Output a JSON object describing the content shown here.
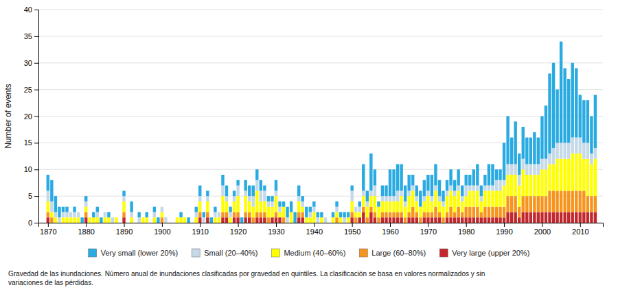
{
  "chart_data": {
    "type": "bar",
    "stacked": true,
    "ylabel": "Number of events",
    "footnote": "Gravedad de las inundaciones. Número anual de inundaciones clasificadas por gravedad en quintiles. La clasificación se basa en valores normalizados y sin\nvariaciones de las pérdidas.",
    "x": [
      1870,
      1871,
      1872,
      1873,
      1874,
      1875,
      1876,
      1877,
      1878,
      1879,
      1880,
      1881,
      1882,
      1883,
      1884,
      1885,
      1886,
      1887,
      1888,
      1889,
      1890,
      1891,
      1892,
      1893,
      1894,
      1895,
      1896,
      1897,
      1898,
      1899,
      1900,
      1901,
      1902,
      1903,
      1904,
      1905,
      1906,
      1907,
      1908,
      1909,
      1910,
      1911,
      1912,
      1913,
      1914,
      1915,
      1916,
      1917,
      1918,
      1919,
      1920,
      1921,
      1922,
      1923,
      1924,
      1925,
      1926,
      1927,
      1928,
      1929,
      1930,
      1931,
      1932,
      1933,
      1934,
      1935,
      1936,
      1937,
      1938,
      1939,
      1940,
      1941,
      1942,
      1943,
      1944,
      1945,
      1946,
      1947,
      1948,
      1949,
      1950,
      1951,
      1952,
      1953,
      1954,
      1955,
      1956,
      1957,
      1958,
      1959,
      1960,
      1961,
      1962,
      1963,
      1964,
      1965,
      1966,
      1967,
      1968,
      1969,
      1970,
      1971,
      1972,
      1973,
      1974,
      1975,
      1976,
      1977,
      1978,
      1979,
      1980,
      1981,
      1982,
      1983,
      1984,
      1985,
      1986,
      1987,
      1988,
      1989,
      1990,
      1991,
      1992,
      1993,
      1994,
      1995,
      1996,
      1997,
      1998,
      1999,
      2000,
      2001,
      2002,
      2003,
      2004,
      2005,
      2006,
      2007,
      2008,
      2009,
      2010,
      2011,
      2012,
      2013,
      2014
    ],
    "xlim": [
      1867.5,
      2016
    ],
    "xticks": [
      1870,
      1880,
      1890,
      1900,
      1910,
      1920,
      1930,
      1940,
      1950,
      1960,
      1970,
      1980,
      1990,
      2000,
      2010
    ],
    "ylim": [
      0,
      40
    ],
    "yticks": [
      0,
      5,
      10,
      15,
      20,
      25,
      30,
      35,
      40
    ],
    "grid": true,
    "legend": "bottom",
    "series": [
      {
        "name": "Very large (upper 20%)",
        "color": "#C1272D",
        "values": [
          1,
          0,
          0,
          0,
          0,
          0,
          0,
          0,
          0,
          0,
          1,
          0,
          0,
          0,
          0,
          0,
          0,
          0,
          0,
          0,
          1,
          0,
          0,
          0,
          0,
          0,
          0,
          0,
          0,
          0,
          0,
          0,
          0,
          0,
          0,
          0,
          0,
          0,
          0,
          0,
          1,
          0,
          1,
          0,
          0,
          0,
          1,
          1,
          0,
          1,
          1,
          0,
          1,
          1,
          0,
          1,
          1,
          1,
          0,
          1,
          1,
          1,
          0,
          0,
          0,
          0,
          1,
          1,
          0,
          0,
          0,
          0,
          0,
          0,
          0,
          0,
          0,
          0,
          0,
          0,
          1,
          0,
          1,
          2,
          0,
          2,
          1,
          0,
          1,
          1,
          1,
          1,
          1,
          1,
          0,
          1,
          1,
          1,
          0,
          1,
          1,
          1,
          1,
          1,
          0,
          1,
          1,
          1,
          1,
          1,
          1,
          1,
          1,
          1,
          1,
          1,
          1,
          1,
          1,
          1,
          1,
          2,
          2,
          2,
          1,
          2,
          2,
          2,
          2,
          2,
          2,
          2,
          2,
          2,
          2,
          2,
          2,
          2,
          2,
          2,
          2,
          2,
          2,
          2,
          2
        ]
      },
      {
        "name": "Large (60–80%)",
        "color": "#F7941D",
        "values": [
          1,
          1,
          0,
          0,
          0,
          0,
          0,
          0,
          0,
          0,
          1,
          0,
          0,
          0,
          0,
          0,
          0,
          0,
          0,
          0,
          1,
          0,
          0,
          0,
          0,
          0,
          0,
          0,
          0,
          0,
          1,
          0,
          0,
          0,
          0,
          0,
          0,
          0,
          0,
          0,
          1,
          0,
          1,
          0,
          0,
          0,
          1,
          1,
          0,
          1,
          1,
          0,
          1,
          1,
          1,
          1,
          1,
          1,
          1,
          0,
          1,
          0,
          1,
          0,
          0,
          0,
          1,
          1,
          0,
          0,
          0,
          0,
          0,
          0,
          0,
          0,
          1,
          0,
          0,
          0,
          1,
          1,
          0,
          1,
          1,
          1,
          1,
          1,
          1,
          1,
          1,
          1,
          1,
          1,
          1,
          1,
          2,
          1,
          1,
          1,
          1,
          1,
          2,
          1,
          1,
          1,
          2,
          1,
          2,
          1,
          2,
          2,
          2,
          2,
          1,
          2,
          2,
          2,
          2,
          2,
          2,
          3,
          3,
          3,
          2,
          3,
          3,
          3,
          3,
          3,
          3,
          3,
          4,
          4,
          4,
          4,
          4,
          4,
          4,
          4,
          4,
          4,
          3,
          3,
          3
        ]
      },
      {
        "name": "Medium (40–60%)",
        "color": "#FFFF00",
        "values": [
          2,
          1,
          1,
          0,
          1,
          1,
          1,
          1,
          1,
          0,
          1,
          1,
          1,
          1,
          0,
          1,
          1,
          0,
          1,
          0,
          2,
          0,
          1,
          0,
          0,
          1,
          1,
          0,
          1,
          0,
          1,
          0,
          0,
          0,
          1,
          1,
          1,
          0,
          0,
          1,
          2,
          0,
          2,
          0,
          1,
          1,
          3,
          2,
          1,
          2,
          3,
          0,
          3,
          2,
          2,
          4,
          2,
          2,
          2,
          2,
          3,
          1,
          2,
          0,
          2,
          0,
          2,
          1,
          1,
          1,
          2,
          0,
          1,
          0,
          0,
          1,
          1,
          1,
          0,
          1,
          2,
          1,
          1,
          2,
          2,
          2,
          3,
          2,
          2,
          2,
          2,
          2,
          2,
          3,
          2,
          3,
          3,
          2,
          2,
          2,
          3,
          2,
          3,
          2,
          2,
          3,
          3,
          3,
          3,
          2,
          2,
          3,
          3,
          3,
          2,
          3,
          3,
          3,
          3,
          3,
          4,
          4,
          4,
          4,
          4,
          5,
          4,
          4,
          4,
          4,
          5,
          5,
          5,
          5,
          6,
          6,
          6,
          6,
          7,
          7,
          7,
          6,
          7,
          6,
          7
        ]
      },
      {
        "name": "Small (20–40%)",
        "color": "#C5D9E8",
        "values": [
          2,
          2,
          1,
          1,
          1,
          1,
          1,
          1,
          1,
          0,
          1,
          0,
          0,
          1,
          0,
          1,
          0,
          1,
          0,
          0,
          1,
          0,
          1,
          0,
          1,
          0,
          0,
          0,
          1,
          0,
          1,
          1,
          0,
          0,
          0,
          0,
          0,
          0,
          0,
          1,
          1,
          1,
          1,
          0,
          1,
          1,
          2,
          1,
          1,
          1,
          2,
          0,
          1,
          1,
          2,
          2,
          2,
          2,
          1,
          1,
          1,
          1,
          0,
          1,
          0,
          0,
          1,
          1,
          0,
          1,
          1,
          1,
          0,
          1,
          0,
          0,
          1,
          0,
          1,
          0,
          2,
          1,
          1,
          1,
          1,
          1,
          2,
          0,
          1,
          1,
          1,
          1,
          2,
          1,
          1,
          1,
          1,
          1,
          0,
          1,
          1,
          1,
          1,
          1,
          1,
          1,
          1,
          1,
          1,
          1,
          2,
          1,
          1,
          1,
          1,
          1,
          1,
          1,
          2,
          2,
          1,
          2,
          2,
          2,
          2,
          2,
          2,
          2,
          2,
          2,
          2,
          2,
          2,
          3,
          3,
          3,
          3,
          3,
          3,
          3,
          3,
          3,
          3,
          2,
          2
        ]
      },
      {
        "name": "Very small (lower 20%)",
        "color": "#29ABE2",
        "values": [
          3,
          4,
          3,
          2,
          1,
          1,
          0,
          1,
          0,
          1,
          1,
          0,
          1,
          1,
          1,
          0,
          1,
          0,
          0,
          0,
          1,
          0,
          2,
          0,
          1,
          0,
          1,
          0,
          1,
          1,
          0,
          0,
          0,
          0,
          0,
          1,
          0,
          1,
          0,
          1,
          2,
          1,
          1,
          1,
          1,
          0,
          2,
          2,
          1,
          1,
          1,
          1,
          2,
          2,
          2,
          2,
          2,
          1,
          1,
          1,
          2,
          1,
          1,
          2,
          2,
          2,
          2,
          1,
          2,
          1,
          1,
          1,
          1,
          0,
          0,
          1,
          1,
          1,
          1,
          1,
          1,
          0,
          1,
          5,
          2,
          7,
          3,
          1,
          2,
          2,
          5,
          5,
          5,
          5,
          3,
          3,
          2,
          2,
          3,
          3,
          3,
          4,
          4,
          3,
          2,
          2,
          3,
          2,
          3,
          2,
          2,
          2,
          3,
          4,
          2,
          2,
          4,
          4,
          2,
          2,
          7,
          9,
          5,
          8,
          4,
          6,
          5,
          5,
          6,
          5,
          8,
          10,
          15,
          16,
          10,
          19,
          14,
          12,
          14,
          13,
          8,
          8,
          8,
          7,
          10
        ]
      }
    ]
  }
}
